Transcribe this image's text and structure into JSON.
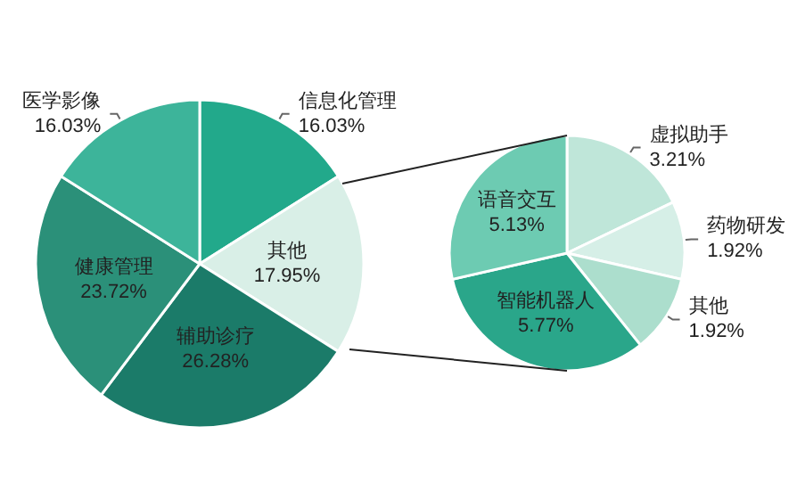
{
  "chart_data": [
    {
      "type": "pie",
      "categories": [
        "信息化管理",
        "其他",
        "辅助诊疗",
        "健康管理",
        "医学影像"
      ],
      "values": [
        16.03,
        17.95,
        26.28,
        23.72,
        16.03
      ],
      "value_labels": [
        "16.03%",
        "17.95%",
        "26.28%",
        "23.72%",
        "16.03%"
      ],
      "colors": [
        "#22a98b",
        "#d9efe7",
        "#1b7b69",
        "#2b9079",
        "#3db49a"
      ]
    },
    {
      "type": "pie",
      "categories": [
        "虚拟助手",
        "药物研发",
        "其他",
        "智能机器人",
        "语音交互"
      ],
      "values": [
        3.21,
        1.92,
        1.92,
        5.77,
        5.13
      ],
      "value_labels": [
        "3.21%",
        "1.92%",
        "1.92%",
        "5.77%",
        "5.13%"
      ],
      "colors": [
        "#bfe6d9",
        "#d6efe7",
        "#acdecd",
        "#2aa68a",
        "#6dcbb2"
      ]
    }
  ]
}
